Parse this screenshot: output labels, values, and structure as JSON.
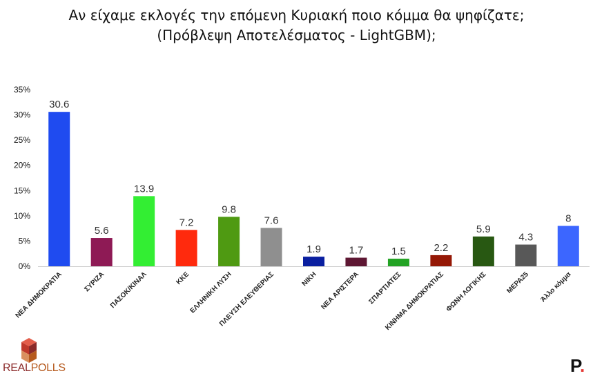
{
  "title_line1": "Αν είχαμε εκλογές την επόμενη Κυριακή ποιο κόμμα θα ψηφίζατε;",
  "title_line2": "(Πρόβλεψη Αποτελέσματος - LightGBM);",
  "logo_text_real": "REAL",
  "logo_text_polls": "POLLS",
  "brand_letter": "P",
  "brand_dot": ".",
  "chart_data": {
    "type": "bar",
    "title": "Αν είχαμε εκλογές την επόμενη Κυριακή ποιο κόμμα θα ψηφίζατε; (Πρόβλεψη Αποτελέσματος - LightGBM);",
    "xlabel": "",
    "ylabel": "",
    "ylim": [
      0,
      35
    ],
    "yticks": [
      "0%",
      "5%",
      "10%",
      "15%",
      "20%",
      "25%",
      "30%",
      "35%"
    ],
    "grid": false,
    "categories": [
      "ΝΕΑ ΔΗΜΟΚΡΑΤΙΑ",
      "ΣΥΡΙΖΑ",
      "ΠΑΣΟΚ/ΚΙΝΑΛ",
      "ΚΚΕ",
      "ΕΛΛΗΝΙΚΗ ΛΥΣΗ",
      "ΠΛΕΥΣΗ ΕΛΕΥΘΕΡΙΑΣ",
      "ΝΙΚΗ",
      "ΝΕΑ ΑΡΙΣΤΕΡΑ",
      "ΣΠΑΡΤΙΑΤΕΣ",
      "ΚΙΝΗΜΑ ΔΗΜΟΚΡΑΤΙΑΣ",
      "ΦΩΝΗ ΛΟΓΙΚΗΣ",
      "ΜΕΡΑ25",
      "Άλλο κόμμα"
    ],
    "values": [
      30.6,
      5.6,
      13.9,
      7.2,
      9.8,
      7.6,
      1.9,
      1.7,
      1.5,
      2.2,
      5.9,
      4.3,
      8
    ],
    "value_labels": [
      "30.6",
      "5.6",
      "13.9",
      "7.2",
      "9.8",
      "7.6",
      "1.9",
      "1.7",
      "1.5",
      "2.2",
      "5.9",
      "4.3",
      "8"
    ],
    "colors": [
      "#1f4bf0",
      "#8e1a55",
      "#33ee33",
      "#ff2a0d",
      "#4f9a12",
      "#8f8f8f",
      "#0a1fa0",
      "#5e1733",
      "#23a324",
      "#951806",
      "#285812",
      "#585858",
      "#3c66ff"
    ]
  }
}
